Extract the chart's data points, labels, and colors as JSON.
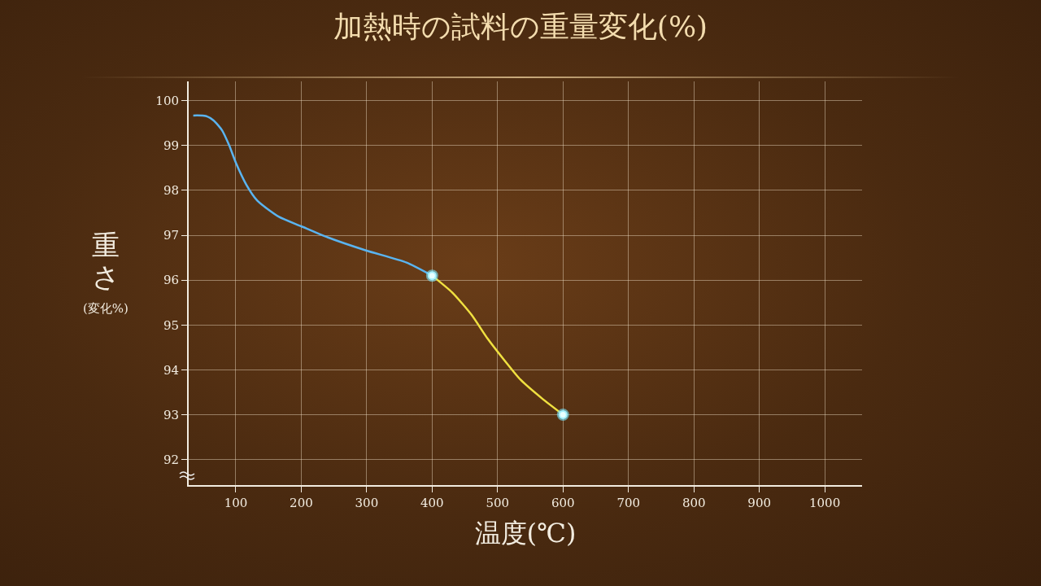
{
  "chart_data": {
    "type": "line",
    "title": "加熱時の試料の重量変化(%)",
    "xlabel": "温度(℃)",
    "ylabel": "重さ\n(変化%)",
    "xlim": [
      28,
      1057
    ],
    "ylim": [
      91.43,
      100.43
    ],
    "xticks": [
      100,
      200,
      300,
      400,
      500,
      600,
      700,
      800,
      900,
      1000
    ],
    "yticks": [
      92,
      93,
      94,
      95,
      96,
      97,
      98,
      99,
      100
    ],
    "grid": true,
    "marker": "none",
    "line_style": "solid",
    "series": [
      {
        "color": "#5ab4f0",
        "x": [
          35,
          54,
          66,
          79,
          90,
          100,
          116,
          133,
          166,
          200,
          241,
          299,
          361,
          400
        ],
        "values": [
          99.67,
          99.66,
          99.56,
          99.34,
          99.0,
          98.62,
          98.13,
          97.77,
          97.41,
          97.2,
          96.95,
          96.66,
          96.39,
          96.1
        ]
      },
      {
        "color": "#f0e040",
        "x": [
          400,
          431,
          460,
          485,
          510,
          535,
          568,
          600
        ],
        "values": [
          96.1,
          95.72,
          95.23,
          94.69,
          94.22,
          93.78,
          93.36,
          93.0
        ]
      },
      {
        "type": "scatter",
        "marker": "circle",
        "color": "#e8ffff",
        "x": [
          400,
          600
        ],
        "values": [
          96.1,
          93.0
        ]
      }
    ]
  }
}
